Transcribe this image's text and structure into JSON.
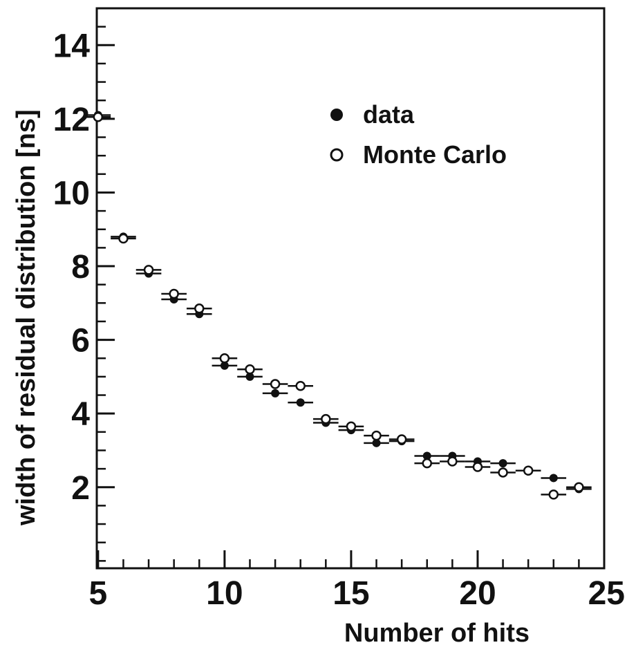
{
  "chart_data": {
    "type": "scatter",
    "xlabel": "Number of hits",
    "ylabel": "width of residual distribution [ns]",
    "xlim": [
      4.95,
      25
    ],
    "ylim": [
      -0.2,
      15.0
    ],
    "x_major_ticks": [
      5,
      10,
      15,
      20,
      25
    ],
    "y_major_ticks": [
      2,
      4,
      6,
      8,
      10,
      12,
      14
    ],
    "x_minor_step": 1,
    "y_minor_step": 0.5,
    "grid": false,
    "legend_position": "top-right",
    "series": [
      {
        "name": "data",
        "marker": "filled-circle",
        "x": [
          5,
          6,
          7,
          8,
          9,
          10,
          11,
          12,
          13,
          14,
          15,
          16,
          17,
          18,
          19,
          20,
          21,
          22,
          23,
          24
        ],
        "values": [
          12.1,
          8.8,
          7.8,
          7.1,
          6.7,
          5.3,
          5.0,
          4.55,
          4.3,
          3.75,
          3.55,
          3.2,
          3.25,
          2.85,
          2.85,
          2.7,
          2.65,
          2.45,
          2.25,
          1.95
        ]
      },
      {
        "name": "Monte Carlo",
        "marker": "open-circle",
        "x": [
          5,
          6,
          7,
          8,
          9,
          10,
          11,
          12,
          13,
          14,
          15,
          16,
          17,
          18,
          19,
          20,
          21,
          22,
          23,
          24
        ],
        "values": [
          12.05,
          8.75,
          7.9,
          7.25,
          6.85,
          5.5,
          5.2,
          4.8,
          4.75,
          3.85,
          3.65,
          3.4,
          3.3,
          2.65,
          2.7,
          2.55,
          2.4,
          2.45,
          1.8,
          2.0
        ]
      }
    ]
  }
}
